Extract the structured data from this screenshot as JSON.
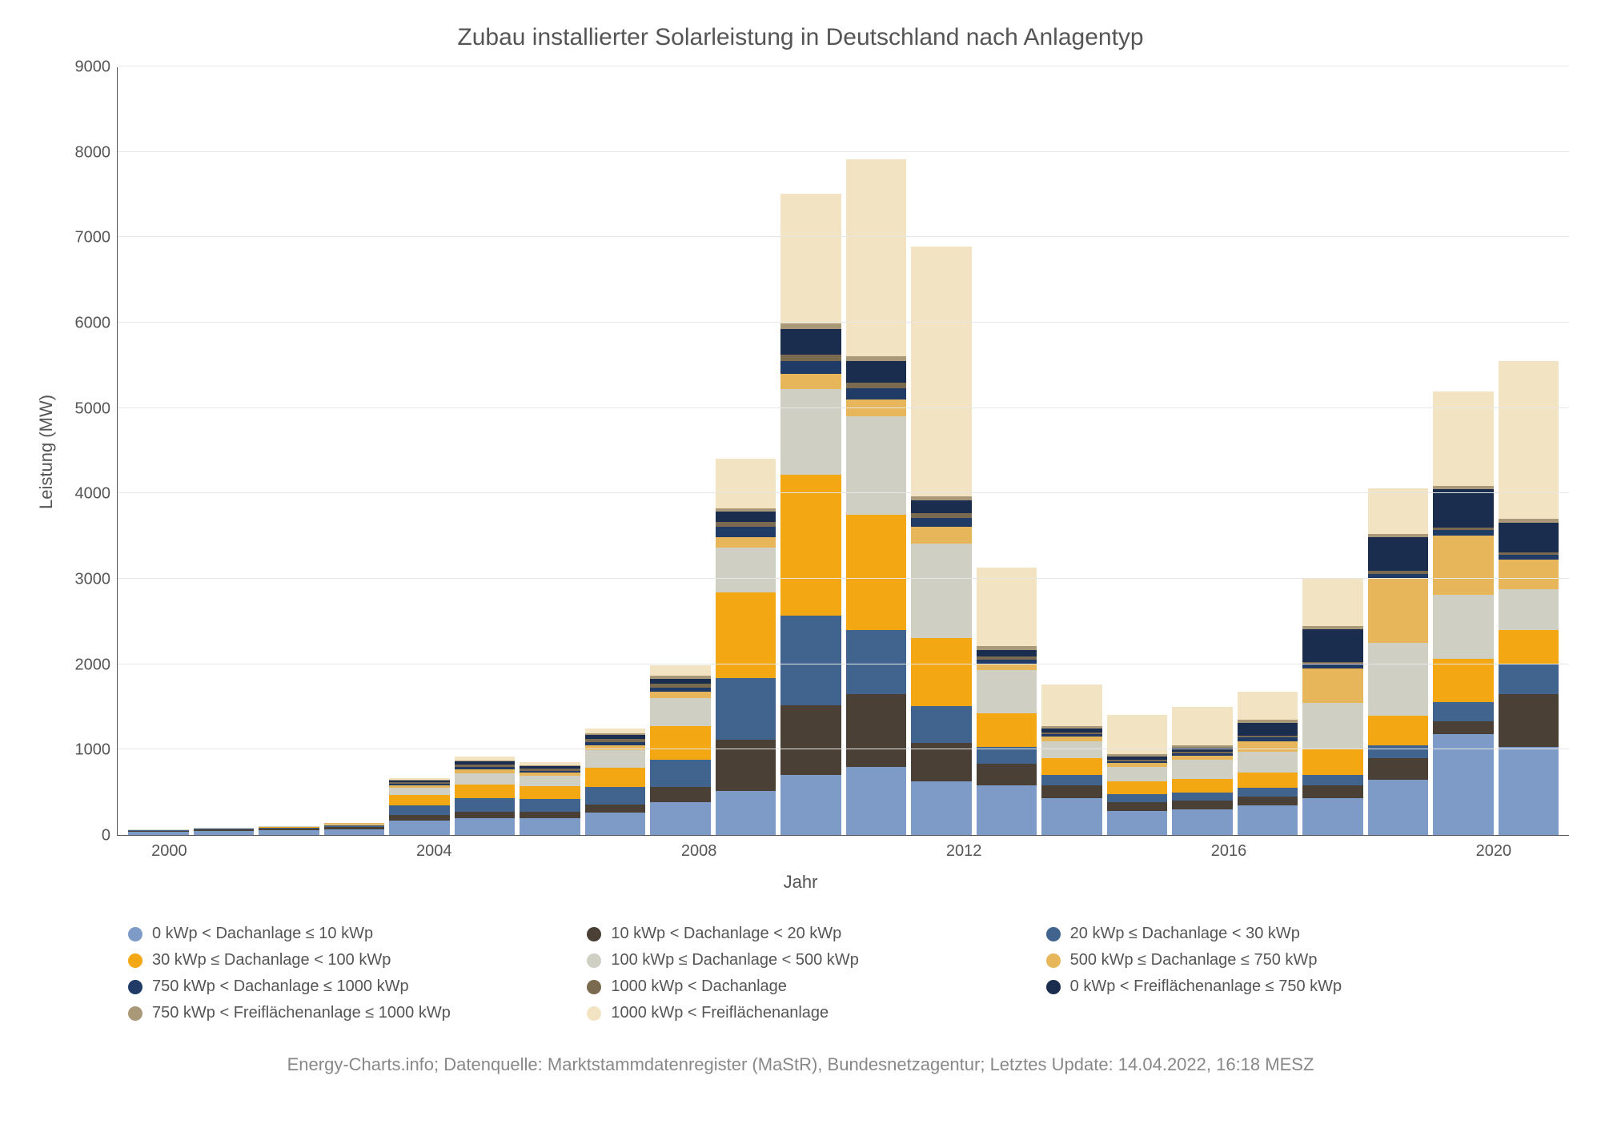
{
  "chart": {
    "type": "stacked-bar",
    "title": "Zubau installierter Solarleistung in Deutschland nach Anlagentyp",
    "ylabel": "Leistung (MW)",
    "xlabel": "Jahr",
    "title_fontsize": 30,
    "label_fontsize": 22,
    "tick_fontsize": 20,
    "background_color": "#ffffff",
    "grid_color": "#e6e6e6",
    "axis_color": "#555555",
    "text_color": "#555555",
    "ylim": [
      0,
      9000
    ],
    "ytick_step": 1000,
    "yticks": [
      0,
      1000,
      2000,
      3000,
      4000,
      5000,
      6000,
      7000,
      8000,
      9000
    ],
    "years": [
      2000,
      2001,
      2002,
      2003,
      2004,
      2005,
      2006,
      2007,
      2008,
      2009,
      2010,
      2011,
      2012,
      2013,
      2014,
      2015,
      2016,
      2017,
      2018,
      2019,
      2020,
      2021
    ],
    "xtick_labels": {
      "2000": "2000",
      "2004": "2004",
      "2008": "2008",
      "2012": "2012",
      "2016": "2016",
      "2020": "2020"
    },
    "bar_group_margin": 3,
    "series": [
      {
        "key": "s1",
        "label": "0 kWp < Dachanlage ≤ 10 kWp",
        "color": "#7e9bc8"
      },
      {
        "key": "s2",
        "label": "10 kWp < Dachanlage < 20 kWp",
        "color": "#4a4035"
      },
      {
        "key": "s3",
        "label": "20 kWp ≤ Dachanlage < 30 kWp",
        "color": "#41648f"
      },
      {
        "key": "s4",
        "label": "30 kWp ≤ Dachanlage < 100 kWp",
        "color": "#f3a712"
      },
      {
        "key": "s5",
        "label": "100 kWp ≤ Dachanlage < 500 kWp",
        "color": "#cfcfc4"
      },
      {
        "key": "s6",
        "label": "500 kWp ≤ Dachanlage ≤ 750 kWp",
        "color": "#e8b65a"
      },
      {
        "key": "s7",
        "label": "750 kWp < Dachanlage ≤ 1000 kWp",
        "color": "#1f3b66"
      },
      {
        "key": "s8",
        "label": "1000 kWp < Dachanlage",
        "color": "#7a6a4f"
      },
      {
        "key": "s9",
        "label": "0 kWp < Freiflächenanlage ≤ 750 kWp",
        "color": "#1b2d4f"
      },
      {
        "key": "s10",
        "label": "750 kWp < Freiflächenanlage ≤ 1000 kWp",
        "color": "#a99979"
      },
      {
        "key": "s11",
        "label": "1000 kWp < Freiflächenanlage",
        "color": "#f2e4c2"
      }
    ],
    "data": {
      "2000": {
        "s1": 40,
        "s2": 10,
        "s3": 5,
        "s4": 5,
        "s5": 5,
        "s6": 0,
        "s7": 0,
        "s8": 0,
        "s9": 0,
        "s10": 0,
        "s11": 0
      },
      "2001": {
        "s1": 50,
        "s2": 15,
        "s3": 8,
        "s4": 7,
        "s5": 5,
        "s6": 0,
        "s7": 0,
        "s8": 0,
        "s9": 0,
        "s10": 0,
        "s11": 0
      },
      "2002": {
        "s1": 55,
        "s2": 18,
        "s3": 10,
        "s4": 10,
        "s5": 8,
        "s6": 0,
        "s7": 0,
        "s8": 0,
        "s9": 0,
        "s10": 0,
        "s11": 0
      },
      "2003": {
        "s1": 70,
        "s2": 25,
        "s3": 15,
        "s4": 15,
        "s5": 10,
        "s6": 3,
        "s7": 2,
        "s8": 2,
        "s9": 2,
        "s10": 1,
        "s11": 0
      },
      "2004": {
        "s1": 170,
        "s2": 60,
        "s3": 120,
        "s4": 120,
        "s5": 80,
        "s6": 30,
        "s7": 20,
        "s8": 20,
        "s9": 20,
        "s10": 10,
        "s11": 20
      },
      "2005": {
        "s1": 200,
        "s2": 70,
        "s3": 160,
        "s4": 160,
        "s5": 130,
        "s6": 50,
        "s7": 30,
        "s8": 30,
        "s9": 30,
        "s10": 15,
        "s11": 40
      },
      "2006": {
        "s1": 200,
        "s2": 70,
        "s3": 150,
        "s4": 150,
        "s5": 120,
        "s6": 40,
        "s7": 25,
        "s8": 25,
        "s9": 25,
        "s10": 15,
        "s11": 30
      },
      "2007": {
        "s1": 260,
        "s2": 100,
        "s3": 200,
        "s4": 230,
        "s5": 200,
        "s6": 60,
        "s7": 40,
        "s8": 40,
        "s9": 40,
        "s10": 20,
        "s11": 60
      },
      "2008": {
        "s1": 380,
        "s2": 180,
        "s3": 320,
        "s4": 400,
        "s5": 320,
        "s6": 80,
        "s7": 50,
        "s8": 40,
        "s9": 60,
        "s10": 40,
        "s11": 120
      },
      "2009": {
        "s1": 520,
        "s2": 600,
        "s3": 720,
        "s4": 1000,
        "s5": 530,
        "s6": 120,
        "s7": 120,
        "s8": 60,
        "s9": 120,
        "s10": 40,
        "s11": 580
      },
      "2010": {
        "s1": 700,
        "s2": 820,
        "s3": 1050,
        "s4": 1650,
        "s5": 1000,
        "s6": 180,
        "s7": 150,
        "s8": 80,
        "s9": 300,
        "s10": 60,
        "s11": 1520
      },
      "2011": {
        "s1": 800,
        "s2": 850,
        "s3": 750,
        "s4": 1350,
        "s5": 1150,
        "s6": 200,
        "s7": 130,
        "s8": 70,
        "s9": 250,
        "s10": 60,
        "s11": 2300
      },
      "2012": {
        "s1": 630,
        "s2": 450,
        "s3": 430,
        "s4": 800,
        "s5": 1100,
        "s6": 200,
        "s7": 100,
        "s8": 60,
        "s9": 150,
        "s10": 50,
        "s11": 2920
      },
      "2013": {
        "s1": 580,
        "s2": 250,
        "s3": 200,
        "s4": 400,
        "s5": 500,
        "s6": 70,
        "s7": 50,
        "s8": 40,
        "s9": 80,
        "s10": 40,
        "s11": 920
      },
      "2014": {
        "s1": 430,
        "s2": 150,
        "s3": 120,
        "s4": 200,
        "s5": 200,
        "s6": 50,
        "s7": 30,
        "s8": 20,
        "s9": 50,
        "s10": 30,
        "s11": 480
      },
      "2015": {
        "s1": 280,
        "s2": 100,
        "s3": 100,
        "s4": 150,
        "s5": 170,
        "s6": 40,
        "s7": 20,
        "s8": 20,
        "s9": 40,
        "s10": 30,
        "s11": 460
      },
      "2016": {
        "s1": 300,
        "s2": 100,
        "s3": 100,
        "s4": 160,
        "s5": 220,
        "s6": 50,
        "s7": 25,
        "s8": 20,
        "s9": 45,
        "s10": 30,
        "s11": 450
      },
      "2017": {
        "s1": 350,
        "s2": 100,
        "s3": 100,
        "s4": 180,
        "s5": 250,
        "s6": 120,
        "s7": 40,
        "s8": 20,
        "s9": 150,
        "s10": 40,
        "s11": 330
      },
      "2018": {
        "s1": 430,
        "s2": 150,
        "s3": 120,
        "s4": 300,
        "s5": 550,
        "s6": 400,
        "s7": 50,
        "s8": 30,
        "s9": 380,
        "s10": 40,
        "s11": 560
      },
      "2019": {
        "s1": 650,
        "s2": 250,
        "s3": 150,
        "s4": 350,
        "s5": 850,
        "s6": 750,
        "s7": 60,
        "s8": 30,
        "s9": 400,
        "s10": 40,
        "s11": 530
      },
      "2020": {
        "s1": 1180,
        "s2": 150,
        "s3": 230,
        "s4": 500,
        "s5": 750,
        "s6": 700,
        "s7": 60,
        "s8": 30,
        "s9": 450,
        "s10": 40,
        "s11": 1100
      },
      "2021": {
        "s1": 1030,
        "s2": 620,
        "s3": 350,
        "s4": 400,
        "s5": 480,
        "s6": 350,
        "s7": 50,
        "s8": 30,
        "s9": 350,
        "s10": 40,
        "s11": 1850
      }
    }
  },
  "footer": "Energy-Charts.info; Datenquelle: Marktstammdatenregister (MaStR), Bundesnetzagentur; Letztes Update: 14.04.2022, 16:18 MESZ"
}
